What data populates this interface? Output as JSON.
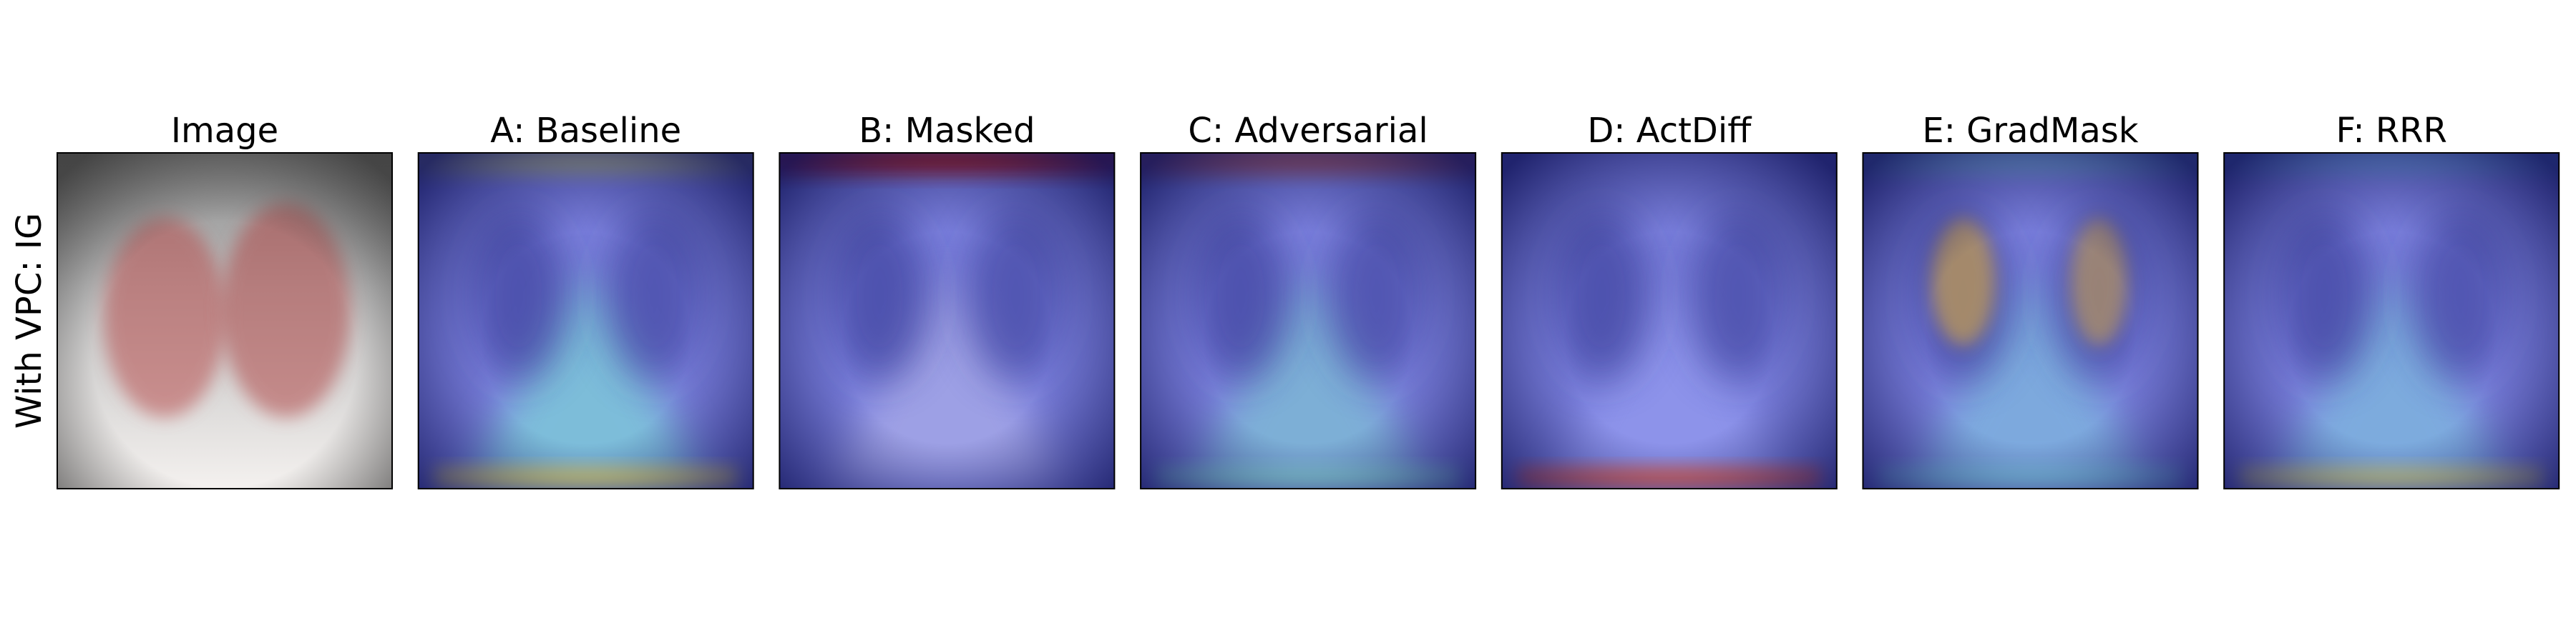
{
  "row_label": "With VPC: IG",
  "panels": [
    {
      "title": "Image"
    },
    {
      "title": "A: Baseline"
    },
    {
      "title": "B: Masked"
    },
    {
      "title": "C: Adversarial"
    },
    {
      "title": "D: ActDiff"
    },
    {
      "title": "E: GradMask"
    },
    {
      "title": "F: RRR"
    }
  ]
}
